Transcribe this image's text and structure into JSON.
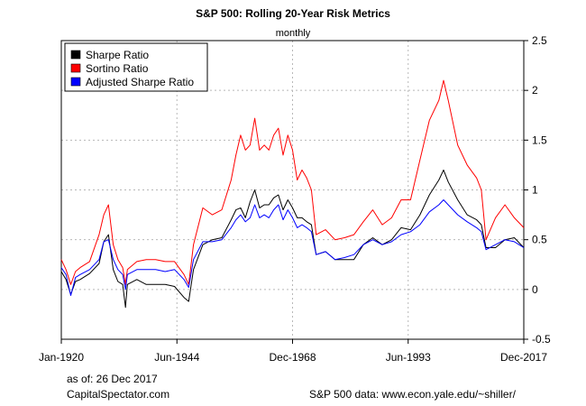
{
  "chart_data": {
    "type": "line",
    "title": "S&P 500: Rolling 20-Year Risk Metrics",
    "subtitle": "monthly",
    "x_ticks": [
      "Jan-1920",
      "Jun-1944",
      "Dec-1968",
      "Jun-1993",
      "Dec-2017"
    ],
    "y_ticks": [
      "-0.5",
      "0",
      "0.5",
      "1",
      "1.5",
      "2",
      "2.5"
    ],
    "ylim": [
      -0.5,
      2.5
    ],
    "xlim": [
      1920.0,
      2018.0
    ],
    "y_axis_side": "right",
    "grid": true,
    "legend_position": "top-left",
    "series": [
      {
        "name": "Sharpe Ratio",
        "color": "#000000",
        "points": [
          [
            1920,
            0.18
          ],
          [
            1921,
            0.1
          ],
          [
            1922,
            -0.05
          ],
          [
            1923,
            0.08
          ],
          [
            1924,
            0.1
          ],
          [
            1926,
            0.16
          ],
          [
            1928,
            0.26
          ],
          [
            1929,
            0.48
          ],
          [
            1930,
            0.55
          ],
          [
            1931,
            0.2
          ],
          [
            1932,
            0.08
          ],
          [
            1933,
            0.05
          ],
          [
            1933.6,
            -0.18
          ],
          [
            1934,
            0.05
          ],
          [
            1936,
            0.1
          ],
          [
            1938,
            0.05
          ],
          [
            1940,
            0.05
          ],
          [
            1942,
            0.05
          ],
          [
            1944,
            0.03
          ],
          [
            1946,
            -0.08
          ],
          [
            1947,
            -0.12
          ],
          [
            1948,
            0.2
          ],
          [
            1950,
            0.45
          ],
          [
            1952,
            0.5
          ],
          [
            1954,
            0.52
          ],
          [
            1956,
            0.7
          ],
          [
            1957,
            0.8
          ],
          [
            1958,
            0.82
          ],
          [
            1959,
            0.72
          ],
          [
            1960,
            0.88
          ],
          [
            1961,
            1.0
          ],
          [
            1962,
            0.82
          ],
          [
            1963,
            0.85
          ],
          [
            1964,
            0.85
          ],
          [
            1965,
            0.92
          ],
          [
            1966,
            0.95
          ],
          [
            1967,
            0.8
          ],
          [
            1968,
            0.9
          ],
          [
            1969,
            0.82
          ],
          [
            1970,
            0.72
          ],
          [
            1971,
            0.72
          ],
          [
            1972,
            0.68
          ],
          [
            1973,
            0.65
          ],
          [
            1974,
            0.35
          ],
          [
            1976,
            0.38
          ],
          [
            1978,
            0.3
          ],
          [
            1980,
            0.3
          ],
          [
            1982,
            0.3
          ],
          [
            1984,
            0.45
          ],
          [
            1986,
            0.52
          ],
          [
            1988,
            0.45
          ],
          [
            1990,
            0.5
          ],
          [
            1992,
            0.62
          ],
          [
            1994,
            0.6
          ],
          [
            1996,
            0.75
          ],
          [
            1998,
            0.95
          ],
          [
            2000,
            1.1
          ],
          [
            2001,
            1.2
          ],
          [
            2002,
            1.08
          ],
          [
            2004,
            0.9
          ],
          [
            2006,
            0.75
          ],
          [
            2008,
            0.7
          ],
          [
            2009,
            0.65
          ],
          [
            2010,
            0.42
          ],
          [
            2012,
            0.42
          ],
          [
            2014,
            0.5
          ],
          [
            2016,
            0.52
          ],
          [
            2018,
            0.42
          ]
        ]
      },
      {
        "name": "Sortino Ratio",
        "color": "#ff0000",
        "points": [
          [
            1920,
            0.3
          ],
          [
            1921,
            0.2
          ],
          [
            1922,
            0.05
          ],
          [
            1923,
            0.18
          ],
          [
            1924,
            0.22
          ],
          [
            1926,
            0.28
          ],
          [
            1928,
            0.55
          ],
          [
            1929,
            0.75
          ],
          [
            1930,
            0.85
          ],
          [
            1931,
            0.45
          ],
          [
            1932,
            0.3
          ],
          [
            1933,
            0.22
          ],
          [
            1933.6,
            0.05
          ],
          [
            1934,
            0.2
          ],
          [
            1936,
            0.28
          ],
          [
            1938,
            0.3
          ],
          [
            1940,
            0.3
          ],
          [
            1942,
            0.28
          ],
          [
            1944,
            0.28
          ],
          [
            1946,
            0.15
          ],
          [
            1947,
            0.05
          ],
          [
            1948,
            0.45
          ],
          [
            1950,
            0.82
          ],
          [
            1952,
            0.75
          ],
          [
            1954,
            0.8
          ],
          [
            1956,
            1.1
          ],
          [
            1957,
            1.35
          ],
          [
            1958,
            1.55
          ],
          [
            1959,
            1.4
          ],
          [
            1960,
            1.45
          ],
          [
            1961,
            1.72
          ],
          [
            1962,
            1.4
          ],
          [
            1963,
            1.45
          ],
          [
            1964,
            1.4
          ],
          [
            1965,
            1.55
          ],
          [
            1966,
            1.62
          ],
          [
            1967,
            1.35
          ],
          [
            1968,
            1.55
          ],
          [
            1969,
            1.4
          ],
          [
            1970,
            1.1
          ],
          [
            1971,
            1.2
          ],
          [
            1972,
            1.12
          ],
          [
            1973,
            1.0
          ],
          [
            1974,
            0.55
          ],
          [
            1976,
            0.6
          ],
          [
            1978,
            0.5
          ],
          [
            1980,
            0.52
          ],
          [
            1982,
            0.55
          ],
          [
            1984,
            0.68
          ],
          [
            1986,
            0.8
          ],
          [
            1988,
            0.65
          ],
          [
            1990,
            0.72
          ],
          [
            1992,
            0.9
          ],
          [
            1994,
            0.9
          ],
          [
            1996,
            1.3
          ],
          [
            1998,
            1.7
          ],
          [
            2000,
            1.9
          ],
          [
            2001,
            2.1
          ],
          [
            2002,
            1.9
          ],
          [
            2004,
            1.45
          ],
          [
            2006,
            1.25
          ],
          [
            2008,
            1.12
          ],
          [
            2009,
            1.0
          ],
          [
            2010,
            0.5
          ],
          [
            2012,
            0.72
          ],
          [
            2014,
            0.85
          ],
          [
            2016,
            0.72
          ],
          [
            2018,
            0.62
          ]
        ]
      },
      {
        "name": "Adjusted Sharpe Ratio",
        "color": "#0000ff",
        "points": [
          [
            1920,
            0.22
          ],
          [
            1921,
            0.15
          ],
          [
            1922,
            -0.06
          ],
          [
            1923,
            0.12
          ],
          [
            1924,
            0.15
          ],
          [
            1926,
            0.2
          ],
          [
            1928,
            0.3
          ],
          [
            1929,
            0.48
          ],
          [
            1930,
            0.5
          ],
          [
            1931,
            0.3
          ],
          [
            1932,
            0.2
          ],
          [
            1933,
            0.15
          ],
          [
            1933.6,
            0.0
          ],
          [
            1934,
            0.15
          ],
          [
            1936,
            0.2
          ],
          [
            1938,
            0.2
          ],
          [
            1940,
            0.2
          ],
          [
            1942,
            0.18
          ],
          [
            1944,
            0.2
          ],
          [
            1946,
            0.1
          ],
          [
            1947,
            0.02
          ],
          [
            1948,
            0.3
          ],
          [
            1950,
            0.48
          ],
          [
            1952,
            0.48
          ],
          [
            1954,
            0.5
          ],
          [
            1956,
            0.62
          ],
          [
            1957,
            0.7
          ],
          [
            1958,
            0.75
          ],
          [
            1959,
            0.68
          ],
          [
            1960,
            0.72
          ],
          [
            1961,
            0.85
          ],
          [
            1962,
            0.72
          ],
          [
            1963,
            0.75
          ],
          [
            1964,
            0.72
          ],
          [
            1965,
            0.8
          ],
          [
            1966,
            0.85
          ],
          [
            1967,
            0.7
          ],
          [
            1968,
            0.8
          ],
          [
            1969,
            0.72
          ],
          [
            1970,
            0.62
          ],
          [
            1971,
            0.65
          ],
          [
            1972,
            0.62
          ],
          [
            1973,
            0.58
          ],
          [
            1974,
            0.35
          ],
          [
            1976,
            0.38
          ],
          [
            1978,
            0.3
          ],
          [
            1980,
            0.32
          ],
          [
            1982,
            0.35
          ],
          [
            1984,
            0.45
          ],
          [
            1986,
            0.5
          ],
          [
            1988,
            0.45
          ],
          [
            1990,
            0.48
          ],
          [
            1992,
            0.55
          ],
          [
            1994,
            0.58
          ],
          [
            1996,
            0.65
          ],
          [
            1998,
            0.78
          ],
          [
            2000,
            0.85
          ],
          [
            2001,
            0.9
          ],
          [
            2002,
            0.85
          ],
          [
            2004,
            0.75
          ],
          [
            2006,
            0.68
          ],
          [
            2008,
            0.62
          ],
          [
            2009,
            0.58
          ],
          [
            2010,
            0.4
          ],
          [
            2012,
            0.45
          ],
          [
            2014,
            0.5
          ],
          [
            2016,
            0.48
          ],
          [
            2018,
            0.42
          ]
        ]
      }
    ]
  },
  "footer": {
    "as_of": "as of: 26 Dec 2017",
    "source_site": "CapitalSpectator.com",
    "data_source": "S&P 500 data: www.econ.yale.edu/~shiller/"
  }
}
